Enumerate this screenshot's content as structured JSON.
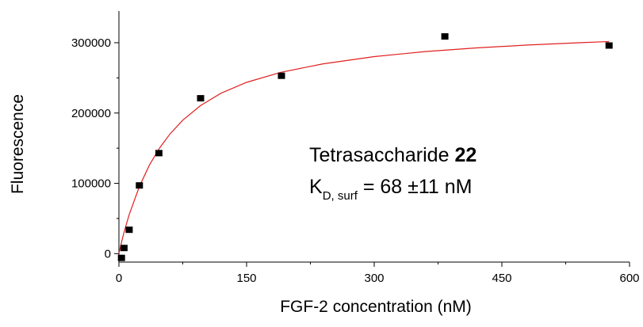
{
  "chart_data": {
    "type": "scatter",
    "xlabel": "FGF-2 concentration (nM)",
    "ylabel": "Fluorescence",
    "xlim": [
      0,
      600
    ],
    "ylim": [
      -12000,
      345000
    ],
    "x_ticks": [
      0,
      150,
      300,
      450,
      600
    ],
    "x_tick_labels": [
      "0",
      "150",
      "300",
      "450",
      "600"
    ],
    "y_ticks": [
      0,
      100000,
      200000,
      300000
    ],
    "y_tick_labels": [
      "0",
      "100000",
      "200000",
      "300000"
    ],
    "grid": false,
    "legend": "none",
    "series": [
      {
        "marker": "square",
        "color": "#000000",
        "x": [
          3,
          6,
          12,
          24,
          47,
          96,
          191,
          383,
          576
        ],
        "y": [
          -6000,
          8000,
          34000,
          97000,
          143000,
          221000,
          253000,
          309000,
          296000
        ]
      },
      {
        "kind": "fit-line",
        "color": "#e02020",
        "x": [
          0,
          3,
          6,
          12,
          24,
          36,
          48,
          60,
          75,
          96,
          120,
          150,
          190,
          240,
          300,
          360,
          420,
          480,
          540,
          576
        ],
        "y": [
          0,
          15900,
          30200,
          55400,
          95600,
          126300,
          150600,
          170200,
          189800,
          210700,
          228200,
          243600,
          257800,
          270000,
          280300,
          287400,
          292600,
          296700,
          299900,
          301600
        ]
      }
    ],
    "annotations": [
      {
        "line1_text": "Tetrasaccharide ",
        "line1_bold": "22",
        "line2_main": "K",
        "line2_sub": "D, surf",
        "line2_rest": " = 68 ±11 nM"
      }
    ]
  }
}
